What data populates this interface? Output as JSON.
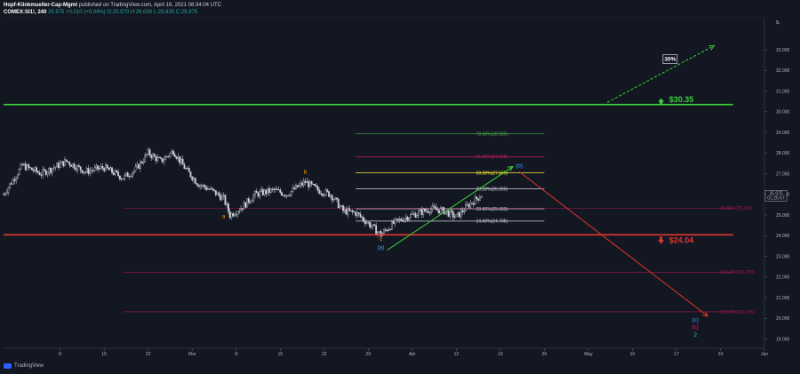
{
  "header": {
    "author": "Hopf-Klinkmueller-Cap-Mgmt",
    "published": "published on TradingView.com, April 16, 2021 08:34:04 UTC",
    "symbol": "COMEX:SI1!, 240",
    "ohlc": "25.975 +0.010 (+0.04%) O:25.970 H:26.000 L:25.835 C:25.975"
  },
  "footer": {
    "brand": "TradingView"
  },
  "chart_data": {
    "type": "candlestick",
    "y_axis": {
      "range": [
        18.55,
        34.55
      ],
      "currency": "$",
      "ticks": [
        "33.000",
        "32.000",
        "31.000",
        "30.000",
        "29.000",
        "28.000",
        "27.000",
        "26.000",
        "25.000",
        "24.000",
        "23.000",
        "22.000",
        "21.000",
        "20.000",
        "19.000"
      ]
    },
    "x_axis": {
      "ticks": [
        "8",
        "15",
        "22",
        "Mar",
        "8",
        "15",
        "22",
        "29",
        "Apr",
        "12",
        "19",
        "26",
        "May",
        "10",
        "17",
        "24",
        "Jun"
      ]
    },
    "last_price": {
      "value": "25.975",
      "countdown": "01:25:57"
    },
    "horizontal_levels": [
      {
        "price": 30.35,
        "label": "$30.35",
        "color": "#3ad13a"
      },
      {
        "price": 24.04,
        "label": "$24.04",
        "color": "#e3342f"
      }
    ],
    "fib_retracement": [
      {
        "ratio": "78.60%",
        "price": 28.935,
        "label": "78.60%(28.935)",
        "color": "#4caf50"
      },
      {
        "ratio": "61.80%",
        "price": 27.825,
        "label": "61.80%(27.825)",
        "color": "#c2185b"
      },
      {
        "ratio": "50.00%",
        "price": 27.045,
        "label": "50.00%(27.045)",
        "color": "#ffeb3b"
      },
      {
        "ratio": "38.20%",
        "price": 26.265,
        "label": "38.20%(26.265)",
        "color": "#d1d4dc"
      },
      {
        "ratio": "23.60%",
        "price": 25.3,
        "label": "23.60%(25.300)",
        "color": "#d1d4dc"
      },
      {
        "ratio": "14.60%",
        "price": 24.705,
        "label": "14.60%(24.705)",
        "color": "#d1d4dc"
      }
    ],
    "fib_extension": [
      {
        "ratio": "61.80%",
        "price": 25.335,
        "label": "61.80%(25.335)",
        "color": "#ad1457"
      },
      {
        "ratio": "100.00%",
        "price": 22.23,
        "label": "100.00%(22.230)",
        "color": "#ad1457"
      },
      {
        "ratio": "121.60%",
        "price": 20.315,
        "label": "121.60%(20.315)",
        "color": "#ad1457"
      }
    ],
    "wave_labels": [
      {
        "text": "a",
        "color": "#ff9800",
        "date": "2021-03-06",
        "price": 24.85
      },
      {
        "text": "b",
        "color": "#ff9800",
        "date": "2021-03-19",
        "price": 27.0
      },
      {
        "text": "c",
        "color": "#ff9800",
        "date": "2021-03-31",
        "price": 23.75
      },
      {
        "text": "(a)",
        "color": "#42a5f5",
        "date": "2021-03-31",
        "price": 23.35
      },
      {
        "text": "(b)",
        "color": "#42a5f5",
        "date": "2021-04-22",
        "price": 27.3
      },
      {
        "text": "(c)",
        "color": "#42a5f5",
        "date": "2021-05-20",
        "price": 19.85
      },
      {
        "text": "[c]",
        "color": "#e91e63",
        "date": "2021-05-20",
        "price": 19.5
      },
      {
        "text": "2",
        "color": "#26c6da",
        "date": "2021-05-20",
        "price": 19.1
      }
    ],
    "projection_paths": [
      {
        "name": "up",
        "color": "#3ad13a",
        "from": {
          "date": "2021-04-01",
          "price": 23.3
        },
        "to": {
          "date": "2021-04-21",
          "price": 27.35
        }
      },
      {
        "name": "down",
        "color": "#e3342f",
        "from": {
          "date": "2021-04-22",
          "price": 27.1
        },
        "to": {
          "date": "2021-05-22",
          "price": 20.1
        }
      },
      {
        "name": "long-term",
        "color": "#3ad13a",
        "style": "dashed",
        "from": {
          "date": "2021-05-06",
          "price": 30.45
        },
        "to": {
          "date": "2021-05-23",
          "price": 33.2
        }
      }
    ],
    "annotation_box": {
      "text": "30%",
      "date": "2021-05-16",
      "price": 32.55
    },
    "price_series_key": [
      [
        "2021-01-30",
        26.0
      ],
      [
        "2021-02-02",
        27.4
      ],
      [
        "2021-02-05",
        27.0
      ],
      [
        "2021-02-09",
        27.6
      ],
      [
        "2021-02-12",
        27.1
      ],
      [
        "2021-02-15",
        27.3
      ],
      [
        "2021-02-18",
        26.8
      ],
      [
        "2021-02-20",
        27.2
      ],
      [
        "2021-02-22",
        28.0
      ],
      [
        "2021-02-24",
        27.6
      ],
      [
        "2021-02-26",
        28.1
      ],
      [
        "2021-02-28",
        27.2
      ],
      [
        "2021-03-02",
        26.5
      ],
      [
        "2021-03-04",
        26.2
      ],
      [
        "2021-03-06",
        25.8
      ],
      [
        "2021-03-07",
        25.0
      ],
      [
        "2021-03-09",
        25.4
      ],
      [
        "2021-03-11",
        26.0
      ],
      [
        "2021-03-14",
        26.2
      ],
      [
        "2021-03-16",
        26.0
      ],
      [
        "2021-03-18",
        26.4
      ],
      [
        "2021-03-19",
        26.6
      ],
      [
        "2021-03-21",
        26.2
      ],
      [
        "2021-03-23",
        26.0
      ],
      [
        "2021-03-25",
        25.2
      ],
      [
        "2021-03-27",
        25.1
      ],
      [
        "2021-03-29",
        24.6
      ],
      [
        "2021-03-31",
        24.05
      ],
      [
        "2021-04-02",
        24.6
      ],
      [
        "2021-04-04",
        24.9
      ],
      [
        "2021-04-06",
        25.1
      ],
      [
        "2021-04-08",
        25.3
      ],
      [
        "2021-04-10",
        25.2
      ],
      [
        "2021-04-12",
        24.9
      ],
      [
        "2021-04-14",
        25.5
      ],
      [
        "2021-04-16",
        25.975
      ]
    ]
  }
}
